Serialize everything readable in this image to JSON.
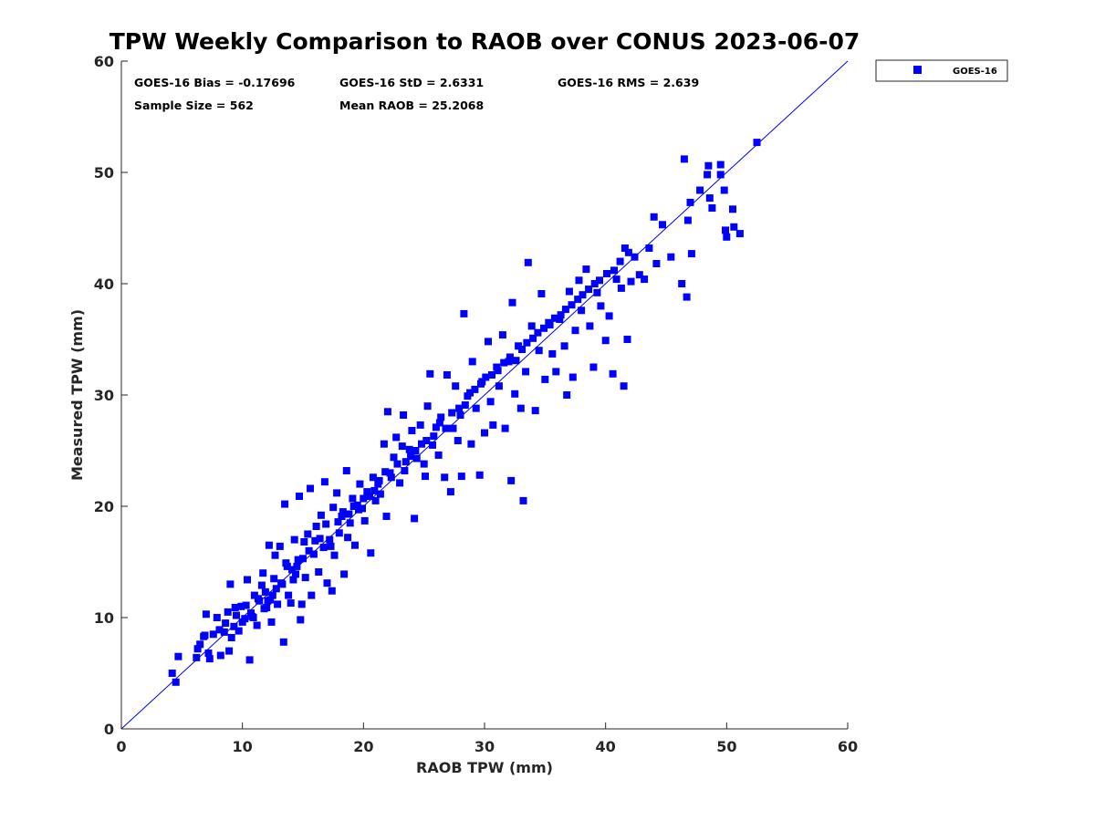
{
  "chart_data": {
    "type": "scatter",
    "title": "TPW Weekly Comparison to RAOB over CONUS 2023-06-07",
    "xlabel": "RAOB TPW (mm)",
    "ylabel": "Measured TPW (mm)",
    "xlim": [
      0,
      60
    ],
    "ylim": [
      0,
      60
    ],
    "xticks": [
      0,
      10,
      20,
      30,
      40,
      50,
      60
    ],
    "yticks": [
      0,
      10,
      20,
      30,
      40,
      50,
      60
    ],
    "xtick_labels": [
      "0",
      "10",
      "20",
      "30",
      "40",
      "50",
      "60"
    ],
    "ytick_labels": [
      "0",
      "10",
      "20",
      "30",
      "40",
      "50",
      "60"
    ],
    "legend_position": "outside-top-right",
    "series_color": "#0000ff",
    "line_color": "#0000ff",
    "reference_line": {
      "x": [
        0,
        60
      ],
      "y": [
        0,
        60
      ]
    },
    "stats": {
      "bias": "GOES-16 Bias = -0.17696",
      "std": "GOES-16 StD = 2.6331",
      "rms": "GOES-16 RMS = 2.639",
      "sample_size": "Sample Size = 562",
      "mean_raob": "Mean RAOB = 25.2068"
    },
    "series": [
      {
        "name": "GOES-16",
        "points": [
          [
            4.2,
            5.0
          ],
          [
            4.5,
            4.2
          ],
          [
            4.7,
            6.5
          ],
          [
            6.2,
            6.4
          ],
          [
            6.3,
            7.2
          ],
          [
            6.5,
            7.6
          ],
          [
            6.8,
            8.3
          ],
          [
            7.0,
            10.3
          ],
          [
            7.2,
            6.8
          ],
          [
            7.3,
            6.3
          ],
          [
            7.6,
            8.5
          ],
          [
            7.9,
            10.0
          ],
          [
            8.2,
            6.6
          ],
          [
            8.5,
            8.7
          ],
          [
            8.6,
            9.5
          ],
          [
            8.8,
            10.5
          ],
          [
            8.9,
            7.0
          ],
          [
            9.0,
            13.0
          ],
          [
            9.1,
            8.2
          ],
          [
            9.3,
            9.2
          ],
          [
            9.5,
            10.2
          ],
          [
            9.7,
            8.8
          ],
          [
            9.9,
            11.0
          ],
          [
            10.0,
            9.6
          ],
          [
            10.2,
            9.9
          ],
          [
            10.4,
            13.4
          ],
          [
            10.6,
            6.2
          ],
          [
            10.7,
            10.4
          ],
          [
            10.9,
            10.0
          ],
          [
            11.0,
            12.0
          ],
          [
            11.2,
            9.3
          ],
          [
            11.4,
            11.5
          ],
          [
            11.6,
            12.9
          ],
          [
            11.7,
            14.0
          ],
          [
            11.9,
            12.3
          ],
          [
            12.0,
            10.9
          ],
          [
            12.2,
            16.5
          ],
          [
            12.3,
            11.6
          ],
          [
            12.4,
            9.6
          ],
          [
            12.5,
            12.0
          ],
          [
            12.6,
            13.5
          ],
          [
            12.7,
            15.6
          ],
          [
            12.9,
            11.2
          ],
          [
            13.1,
            16.4
          ],
          [
            13.2,
            13.1
          ],
          [
            13.4,
            7.8
          ],
          [
            13.5,
            20.2
          ],
          [
            13.6,
            14.9
          ],
          [
            13.8,
            12.0
          ],
          [
            14.0,
            11.3
          ],
          [
            14.1,
            14.3
          ],
          [
            14.3,
            17.0
          ],
          [
            14.4,
            13.9
          ],
          [
            14.6,
            15.2
          ],
          [
            14.7,
            20.9
          ],
          [
            14.8,
            9.8
          ],
          [
            14.9,
            11.2
          ],
          [
            15.1,
            16.8
          ],
          [
            15.2,
            13.6
          ],
          [
            15.4,
            17.5
          ],
          [
            15.6,
            21.6
          ],
          [
            15.7,
            12.0
          ],
          [
            15.9,
            15.7
          ],
          [
            16.1,
            18.2
          ],
          [
            16.3,
            14.1
          ],
          [
            16.5,
            19.2
          ],
          [
            16.7,
            16.3
          ],
          [
            16.8,
            22.2
          ],
          [
            17.0,
            13.1
          ],
          [
            17.2,
            17.0
          ],
          [
            17.4,
            12.4
          ],
          [
            17.5,
            19.9
          ],
          [
            17.6,
            15.6
          ],
          [
            17.8,
            21.2
          ],
          [
            18.0,
            17.6
          ],
          [
            18.2,
            19.1
          ],
          [
            18.4,
            13.9
          ],
          [
            18.6,
            23.2
          ],
          [
            18.7,
            17.2
          ],
          [
            18.9,
            18.5
          ],
          [
            19.1,
            20.7
          ],
          [
            19.3,
            16.5
          ],
          [
            19.5,
            20.1
          ],
          [
            19.7,
            22.0
          ],
          [
            19.9,
            19.8
          ],
          [
            20.1,
            18.7
          ],
          [
            20.3,
            21.3
          ],
          [
            20.6,
            15.8
          ],
          [
            20.8,
            22.6
          ],
          [
            21.0,
            20.5
          ],
          [
            21.2,
            22.0
          ],
          [
            21.4,
            21.1
          ],
          [
            21.7,
            25.6
          ],
          [
            21.9,
            19.1
          ],
          [
            22.0,
            28.5
          ],
          [
            22.2,
            23.0
          ],
          [
            22.5,
            24.4
          ],
          [
            22.7,
            26.2
          ],
          [
            23.0,
            22.1
          ],
          [
            23.2,
            25.4
          ],
          [
            23.3,
            28.2
          ],
          [
            23.5,
            24.0
          ],
          [
            23.8,
            25.1
          ],
          [
            24.0,
            26.8
          ],
          [
            24.2,
            18.9
          ],
          [
            24.4,
            24.3
          ],
          [
            24.7,
            27.3
          ],
          [
            25.0,
            23.8
          ],
          [
            25.1,
            22.7
          ],
          [
            25.3,
            29.0
          ],
          [
            25.5,
            31.9
          ],
          [
            25.7,
            25.5
          ],
          [
            26.0,
            27.1
          ],
          [
            26.2,
            24.6
          ],
          [
            26.4,
            28.0
          ],
          [
            26.7,
            22.6
          ],
          [
            26.9,
            31.8
          ],
          [
            27.2,
            21.3
          ],
          [
            27.4,
            27.0
          ],
          [
            27.6,
            30.8
          ],
          [
            27.8,
            25.9
          ],
          [
            28.0,
            28.2
          ],
          [
            28.1,
            22.7
          ],
          [
            28.3,
            37.3
          ],
          [
            28.6,
            29.9
          ],
          [
            28.9,
            25.6
          ],
          [
            29.0,
            33.0
          ],
          [
            29.3,
            28.8
          ],
          [
            29.6,
            22.8
          ],
          [
            29.8,
            31.2
          ],
          [
            30.0,
            26.6
          ],
          [
            30.3,
            34.8
          ],
          [
            30.5,
            29.4
          ],
          [
            30.7,
            27.3
          ],
          [
            31.0,
            32.5
          ],
          [
            31.2,
            30.8
          ],
          [
            31.5,
            35.4
          ],
          [
            31.7,
            27.0
          ],
          [
            32.0,
            33.0
          ],
          [
            32.2,
            22.3
          ],
          [
            32.3,
            38.3
          ],
          [
            32.5,
            30.1
          ],
          [
            32.8,
            34.4
          ],
          [
            33.0,
            28.8
          ],
          [
            33.2,
            20.5
          ],
          [
            33.4,
            32.1
          ],
          [
            33.6,
            41.9
          ],
          [
            33.9,
            36.2
          ],
          [
            34.2,
            28.6
          ],
          [
            34.5,
            34.0
          ],
          [
            34.7,
            39.1
          ],
          [
            35.0,
            31.4
          ],
          [
            35.3,
            36.5
          ],
          [
            35.6,
            33.7
          ],
          [
            35.9,
            32.1
          ],
          [
            36.2,
            36.8
          ],
          [
            36.6,
            34.4
          ],
          [
            36.8,
            30.0
          ],
          [
            37.0,
            39.3
          ],
          [
            37.3,
            31.6
          ],
          [
            37.5,
            35.8
          ],
          [
            37.8,
            40.3
          ],
          [
            38.0,
            37.6
          ],
          [
            38.4,
            41.3
          ],
          [
            38.7,
            36.2
          ],
          [
            39.0,
            32.5
          ],
          [
            39.3,
            39.2
          ],
          [
            39.6,
            38.0
          ],
          [
            40.0,
            34.9
          ],
          [
            40.3,
            37.1
          ],
          [
            40.6,
            31.9
          ],
          [
            40.9,
            40.4
          ],
          [
            41.3,
            39.6
          ],
          [
            41.5,
            30.8
          ],
          [
            41.6,
            43.2
          ],
          [
            41.8,
            35.0
          ],
          [
            42.1,
            40.2
          ],
          [
            42.4,
            42.4
          ],
          [
            42.8,
            40.8
          ],
          [
            43.2,
            40.4
          ],
          [
            43.6,
            43.2
          ],
          [
            44.0,
            46.0
          ],
          [
            44.2,
            41.8
          ],
          [
            44.7,
            45.3
          ],
          [
            45.4,
            42.4
          ],
          [
            46.3,
            40.0
          ],
          [
            46.5,
            51.2
          ],
          [
            46.7,
            38.8
          ],
          [
            46.8,
            45.7
          ],
          [
            47.0,
            47.3
          ],
          [
            47.1,
            42.7
          ],
          [
            47.8,
            48.4
          ],
          [
            48.4,
            49.8
          ],
          [
            48.5,
            50.6
          ],
          [
            48.6,
            47.7
          ],
          [
            48.8,
            46.8
          ],
          [
            49.5,
            50.7
          ],
          [
            49.5,
            49.8
          ],
          [
            49.8,
            48.4
          ],
          [
            49.9,
            44.8
          ],
          [
            50.0,
            44.2
          ],
          [
            50.5,
            46.7
          ],
          [
            50.6,
            45.1
          ],
          [
            51.1,
            44.5
          ],
          [
            52.5,
            52.7
          ],
          [
            6.9,
            8.4
          ],
          [
            8.1,
            8.9
          ],
          [
            9.4,
            10.9
          ],
          [
            10.3,
            11.1
          ],
          [
            10.8,
            10.1
          ],
          [
            11.3,
            11.7
          ],
          [
            11.8,
            10.8
          ],
          [
            12.1,
            11.5
          ],
          [
            12.8,
            12.6
          ],
          [
            13.3,
            13.0
          ],
          [
            13.7,
            14.6
          ],
          [
            14.2,
            13.4
          ],
          [
            14.5,
            14.6
          ],
          [
            15.0,
            15.3
          ],
          [
            15.5,
            16.0
          ],
          [
            16.0,
            16.9
          ],
          [
            16.4,
            17.1
          ],
          [
            16.9,
            18.4
          ],
          [
            17.3,
            16.4
          ],
          [
            17.9,
            18.6
          ],
          [
            18.3,
            19.5
          ],
          [
            18.8,
            19.3
          ],
          [
            19.2,
            20.0
          ],
          [
            19.6,
            19.7
          ],
          [
            20.0,
            20.7
          ],
          [
            20.5,
            20.9
          ],
          [
            20.9,
            21.4
          ],
          [
            21.3,
            22.3
          ],
          [
            21.8,
            23.1
          ],
          [
            22.3,
            22.6
          ],
          [
            22.8,
            23.8
          ],
          [
            23.4,
            23.2
          ],
          [
            23.9,
            24.5
          ],
          [
            24.3,
            25.0
          ],
          [
            24.8,
            25.6
          ],
          [
            25.2,
            25.9
          ],
          [
            25.8,
            26.3
          ],
          [
            26.3,
            27.5
          ],
          [
            26.8,
            27.0
          ],
          [
            27.3,
            28.4
          ],
          [
            27.9,
            28.8
          ],
          [
            28.4,
            29.1
          ],
          [
            28.8,
            30.2
          ],
          [
            29.2,
            30.5
          ],
          [
            29.7,
            31.0
          ],
          [
            30.1,
            31.6
          ],
          [
            30.6,
            31.8
          ],
          [
            31.1,
            32.2
          ],
          [
            31.6,
            32.9
          ],
          [
            32.1,
            33.4
          ],
          [
            32.6,
            33.1
          ],
          [
            33.1,
            34.1
          ],
          [
            33.5,
            34.7
          ],
          [
            34.0,
            35.1
          ],
          [
            34.4,
            35.6
          ],
          [
            34.9,
            36.0
          ],
          [
            35.4,
            36.3
          ],
          [
            35.8,
            36.9
          ],
          [
            36.3,
            37.2
          ],
          [
            36.7,
            37.7
          ],
          [
            37.2,
            38.1
          ],
          [
            37.7,
            38.6
          ],
          [
            38.1,
            39.0
          ],
          [
            38.6,
            39.5
          ],
          [
            39.1,
            40.0
          ],
          [
            39.5,
            40.3
          ],
          [
            40.1,
            40.9
          ],
          [
            40.7,
            41.2
          ],
          [
            41.2,
            42.0
          ],
          [
            41.9,
            42.8
          ]
        ]
      }
    ]
  }
}
